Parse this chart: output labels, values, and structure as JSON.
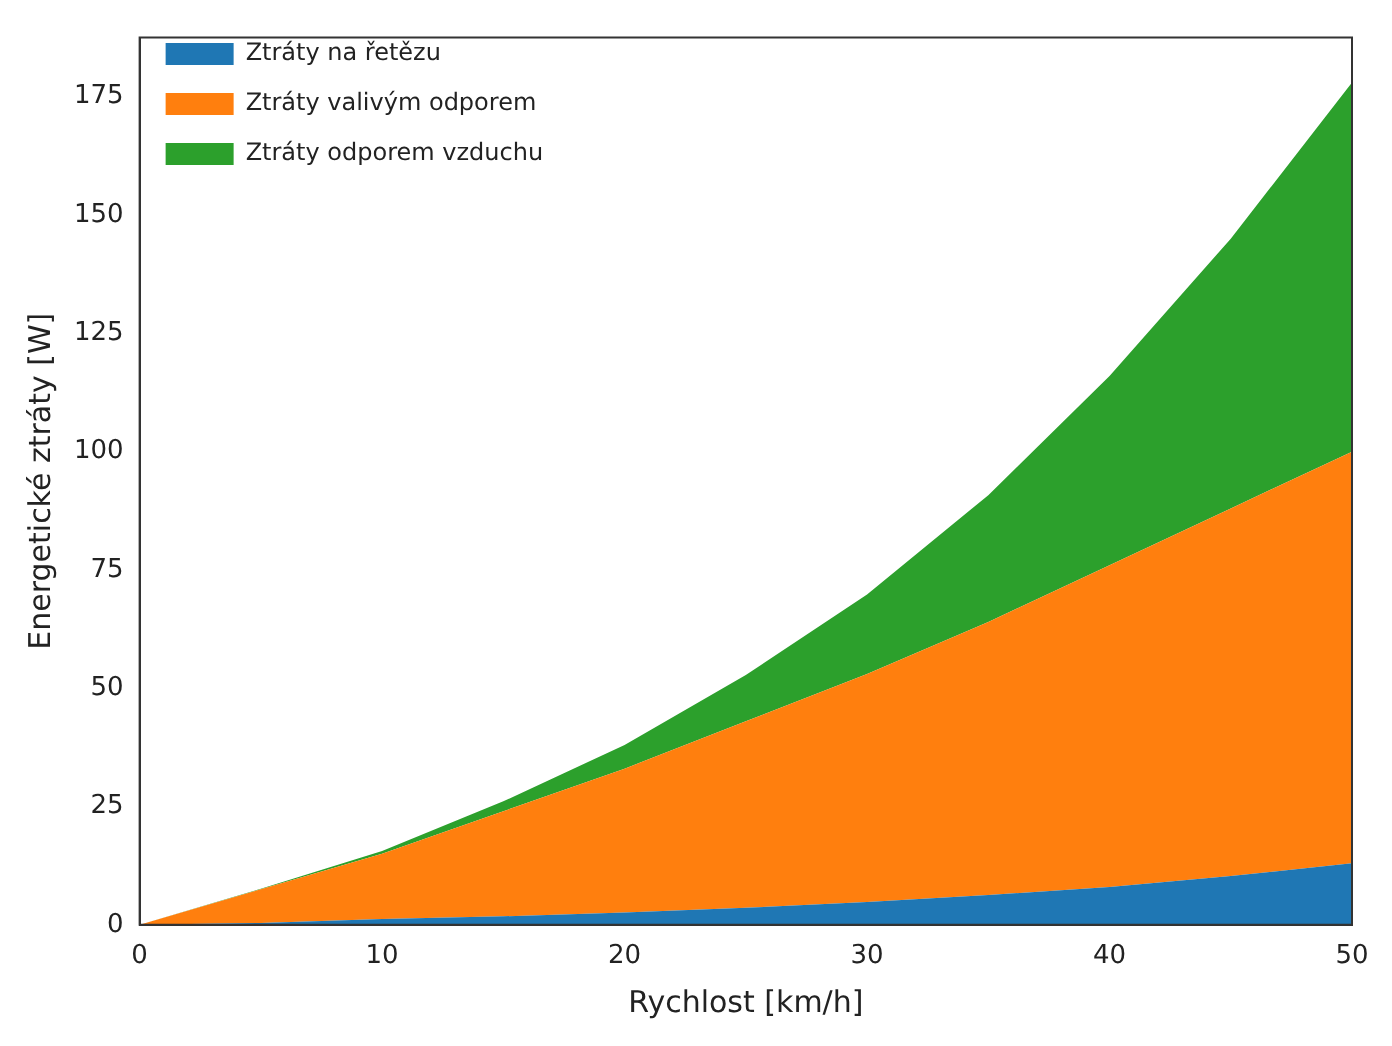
{
  "chart_data": {
    "type": "area",
    "stacked": true,
    "xlabel": "Rychlost [km/h]",
    "ylabel": "Energetické ztráty [W]",
    "x": [
      0,
      5,
      10,
      15,
      20,
      25,
      30,
      35,
      40,
      45,
      50
    ],
    "series": [
      {
        "name": "Ztráty na řetězu",
        "color": "#1f77b4",
        "values": [
          0,
          0.4,
          1.2,
          1.8,
          2.6,
          3.6,
          4.8,
          6.3,
          8,
          10.3,
          13
        ]
      },
      {
        "name": "Ztráty valivým odporem",
        "color": "#ff7f0e",
        "values": [
          0,
          7.1,
          13.8,
          22.2,
          30.4,
          39.4,
          48.2,
          57.7,
          68,
          77.7,
          87
        ]
      },
      {
        "name": "Ztráty odporem vzduchu",
        "color": "#2ca02c",
        "values": [
          0,
          0.1,
          0.6,
          2.1,
          5,
          9.8,
          16.8,
          26.8,
          40,
          57,
          78
        ]
      }
    ],
    "xlim": [
      0,
      50
    ],
    "xticks": [
      0,
      10,
      20,
      30,
      40,
      50
    ],
    "ylim": [
      0,
      187.5
    ],
    "yticks": [
      0,
      25,
      50,
      75,
      100,
      125,
      150,
      175
    ],
    "grid": false,
    "legend": "top left"
  }
}
